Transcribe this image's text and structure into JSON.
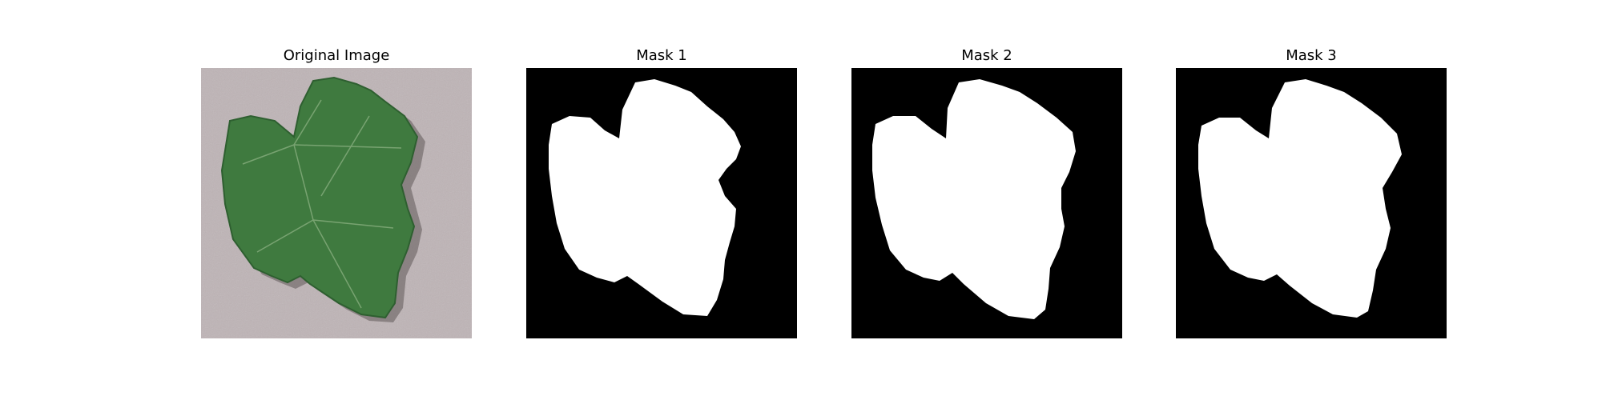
{
  "figure": {
    "panels": [
      {
        "title": "Original Image",
        "kind": "photo",
        "subject": "green grape leaf on grey background"
      },
      {
        "title": "Mask 1",
        "kind": "mask"
      },
      {
        "title": "Mask 2",
        "kind": "mask"
      },
      {
        "title": "Mask 3",
        "kind": "mask"
      }
    ]
  },
  "colors": {
    "background": "#ffffff",
    "mask_background": "#000000",
    "mask_foreground": "#ffffff",
    "photo_background": "#beb4b6",
    "leaf_fill": "#3f7a3f",
    "leaf_dark": "#2e5f30",
    "leaf_vein": "#7fa877"
  }
}
